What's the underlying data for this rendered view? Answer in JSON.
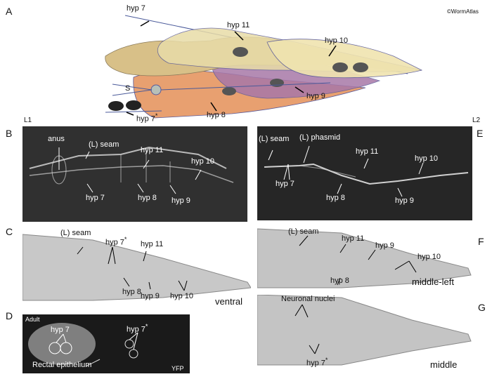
{
  "copyright": "©WormAtlas",
  "panels": {
    "A": {
      "letter": "A",
      "labels": {
        "hyp7": "hyp 7",
        "hyp11": "hyp 11",
        "hyp10": "hyp 10",
        "s": "S",
        "hyp9": "hyp 9",
        "hyp8": "hyp 8",
        "hyp7star": "hyp 7",
        "star": "*"
      }
    },
    "B": {
      "letter": "B",
      "stage": "L1",
      "labels": {
        "anus": "anus",
        "seam": "(L) seam",
        "hyp11": "hyp 11",
        "hyp10": "hyp 10",
        "hyp7": "hyp 7",
        "hyp8": "hyp 8",
        "hyp9": "hyp 9"
      }
    },
    "C": {
      "letter": "C",
      "labels": {
        "seam": "(L) seam",
        "hyp7": "hyp 7",
        "star": "*",
        "hyp11": "hyp 11",
        "hyp8": "hyp 8",
        "hyp9": "hyp 9",
        "hyp10": "hyp 10",
        "view": "ventral"
      }
    },
    "D": {
      "letter": "D",
      "labels": {
        "adult": "Adult",
        "hyp7": "hyp 7",
        "hyp7star": "hyp 7",
        "star": "*",
        "rectal": "Rectal epithelium",
        "yfp": "YFP"
      }
    },
    "E": {
      "letter": "E",
      "stage": "L2",
      "labels": {
        "seam": "(L) seam",
        "phasmid": "(L) phasmid",
        "hyp11": "hyp 11",
        "hyp10": "hyp 10",
        "hyp7": "hyp 7",
        "hyp8": "hyp 8",
        "hyp9": "hyp 9"
      }
    },
    "F": {
      "letter": "F",
      "labels": {
        "seam": "(L) seam",
        "hyp11": "hyp 11",
        "hyp9": "hyp 9",
        "hyp10": "hyp 10",
        "hyp8": "hyp 8",
        "view": "middle-left"
      }
    },
    "G": {
      "letter": "G",
      "labels": {
        "neuronal": "Neuronal nuclei",
        "hyp7": "hyp 7",
        "star": "*",
        "view": "middle"
      }
    }
  }
}
